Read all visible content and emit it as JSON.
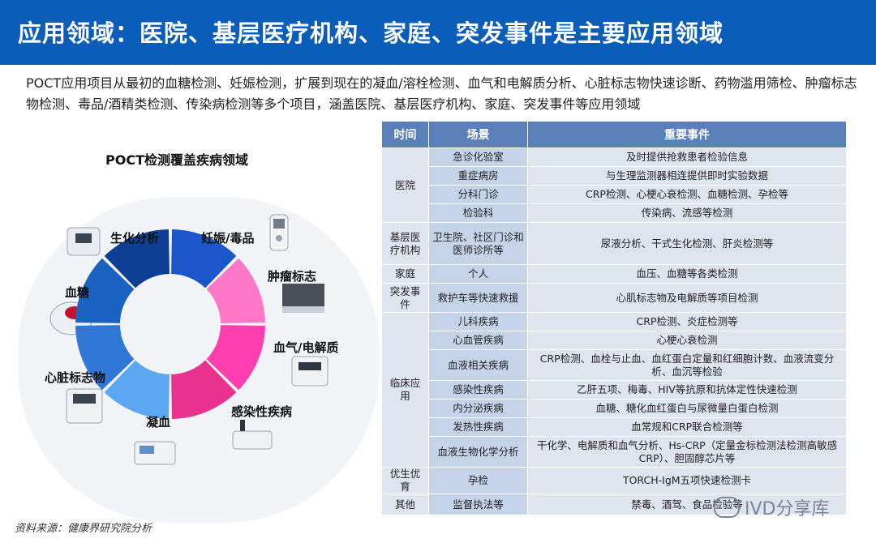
{
  "header": {
    "title": "应用领域：医院、基层医疗机构、家庭、突发事件是主要应用领域"
  },
  "intro": "POCT应用项目从最初的血糖检测、妊娠检测，扩展到现在的凝血/溶栓检测、血气和电解质分析、心脏标志物快速诊断、药物滥用筛检、肿瘤标志物检测、毒品/酒精类检测、传染病检测等多个项目，涵盖医院、基层医疗机构、家庭、突发事件等应用领域",
  "chart": {
    "title": "POCT检测覆盖疾病领域",
    "labels": [
      "生化分析",
      "妊娠/毒品",
      "肿瘤标志",
      "血气/电解质",
      "感染性疾病",
      "凝血",
      "心脏标志物",
      "血糖"
    ],
    "colors": [
      "#0d3f94",
      "#1a56c8",
      "#ff78c8",
      "#ff3fb0",
      "#e8328e",
      "#5ba8f0",
      "#2f78d6",
      "#1b63c2"
    ]
  },
  "chart_data": {
    "type": "pie",
    "categories": [
      "妊娠/毒品",
      "肿瘤标志",
      "血气/电解质",
      "感染性疾病",
      "凝血",
      "心脏标志物",
      "血糖",
      "生化分析"
    ],
    "values": [
      1,
      1,
      1,
      1,
      1,
      1,
      1,
      1
    ],
    "title": "POCT检测覆盖疾病领域"
  },
  "table": {
    "headers": [
      "时间",
      "场景",
      "重要事件"
    ],
    "hospital": {
      "cat": "医院",
      "rows": [
        {
          "scene": "急诊化验室",
          "event": "及时提供抢救患者检验信息"
        },
        {
          "scene": "重症病房",
          "event": "与生理监测器相连提供即时实验数据"
        },
        {
          "scene": "分科门诊",
          "event": "CRP检测、心梗心衰检测、血糖检测、孕检等"
        },
        {
          "scene": "检验科",
          "event": "传染病、流感等检测"
        }
      ]
    },
    "basic": {
      "cat": "基层医疗机构",
      "scene": "卫生院、社区门诊和医师诊所等",
      "event": "尿液分析、干式生化检测、肝炎检测等"
    },
    "home": {
      "cat": "家庭",
      "scene": "个人",
      "event": "血压、血糖等各类检测"
    },
    "emergency": {
      "cat": "突发事件",
      "scene": "救护车等快速救援",
      "event": "心肌标志物及电解质等项目检测"
    },
    "clinical": {
      "cat": "临床应用",
      "rows": [
        {
          "scene": "儿科疾病",
          "event": "CRP检测、炎症检测等"
        },
        {
          "scene": "心血管疾病",
          "event": "心梗心衰检测"
        },
        {
          "scene": "血液相关疾病",
          "event": "CRP检测、血栓与止血、血红蛋白定量和红细胞计数、血液流变分析、血沉等检验"
        },
        {
          "scene": "感染性疾病",
          "event": "乙肝五项、梅毒、HIV等抗原和抗体定性快速检测"
        },
        {
          "scene": "内分泌疾病",
          "event": "血糖、糖化血红蛋白与尿微量白蛋白检测"
        },
        {
          "scene": "发热性疾病",
          "event": "血常规和CRP联合检测等"
        },
        {
          "scene": "血液生物化学分析",
          "event": "干化学、电解质和血气分析、Hs-CRP（定量金标检测法检测高敏感CRP）、胆固醇芯片等"
        }
      ]
    },
    "eugenics": {
      "cat": "优生优育",
      "scene": "孕检",
      "event": "TORCH-IgM五项快速检测卡"
    },
    "other": {
      "cat": "其他",
      "scene": "监督执法等",
      "event": "禁毒、酒驾、食品检验等"
    }
  },
  "source": "资料来源：健康界研究院分析",
  "watermark": "IVD分享库"
}
